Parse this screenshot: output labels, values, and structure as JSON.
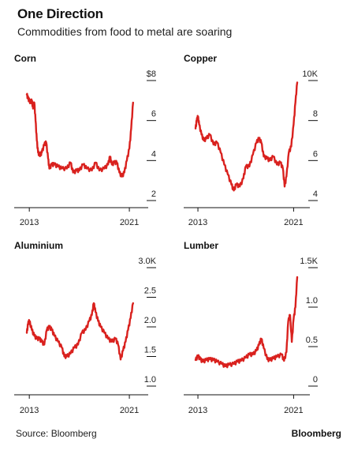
{
  "title": "One Direction",
  "subtitle": "Commodities from food to metal are soaring",
  "source": "Source: Bloomberg",
  "brand": "Bloomberg",
  "line_color": "#d9211e",
  "chart_data": [
    {
      "type": "line",
      "title": "Corn",
      "x_ticks": [
        "2013",
        "2021"
      ],
      "y_ticks": [
        "$8",
        "6",
        "4",
        "2"
      ],
      "ylim": [
        2,
        8
      ],
      "xlim": [
        2012.8,
        2021.5
      ],
      "series": [
        {
          "x": [
            2012.8,
            2012.9,
            2013.0,
            2013.1,
            2013.2,
            2013.3,
            2013.4,
            2013.5,
            2013.6,
            2013.7,
            2013.8,
            2013.9,
            2014.0,
            2014.2,
            2014.35,
            2014.5,
            2014.6,
            2014.8,
            2015.0,
            2015.3,
            2015.6,
            2016.0,
            2016.3,
            2016.5,
            2016.8,
            2017.0,
            2017.3,
            2017.6,
            2018.0,
            2018.3,
            2018.6,
            2019.0,
            2019.3,
            2019.45,
            2019.6,
            2019.8,
            2020.0,
            2020.2,
            2020.4,
            2020.6,
            2020.8,
            2021.0,
            2021.15,
            2021.3
          ],
          "y": [
            7.3,
            7.1,
            7.0,
            6.9,
            7.0,
            6.6,
            6.9,
            6.0,
            5.0,
            4.4,
            4.3,
            4.3,
            4.4,
            4.8,
            4.9,
            4.1,
            3.6,
            3.8,
            3.8,
            3.7,
            3.6,
            3.6,
            3.9,
            3.4,
            3.5,
            3.5,
            3.8,
            3.6,
            3.5,
            3.9,
            3.5,
            3.6,
            3.8,
            4.2,
            3.8,
            3.9,
            3.9,
            3.4,
            3.2,
            3.4,
            4.0,
            4.6,
            5.6,
            6.9
          ]
        }
      ]
    },
    {
      "type": "line",
      "title": "Copper",
      "x_ticks": [
        "2013",
        "2021"
      ],
      "y_ticks": [
        "10K",
        "8",
        "6",
        "4"
      ],
      "ylim": [
        4000,
        10000
      ],
      "xlim": [
        2012.8,
        2021.5
      ],
      "series": [
        {
          "x": [
            2012.8,
            2012.9,
            2013.0,
            2013.1,
            2013.3,
            2013.5,
            2013.7,
            2014.0,
            2014.3,
            2014.6,
            2014.9,
            2015.2,
            2015.5,
            2015.8,
            2016.0,
            2016.2,
            2016.5,
            2016.8,
            2017.0,
            2017.3,
            2017.6,
            2017.9,
            2018.1,
            2018.3,
            2018.5,
            2018.8,
            2019.0,
            2019.3,
            2019.6,
            2019.9,
            2020.1,
            2020.25,
            2020.4,
            2020.6,
            2020.8,
            2021.0,
            2021.15,
            2021.3
          ],
          "y": [
            7600,
            8000,
            8200,
            7800,
            7300,
            7000,
            7100,
            7300,
            6800,
            6900,
            6400,
            5800,
            5300,
            4800,
            4500,
            4800,
            4700,
            5100,
            5700,
            5700,
            6300,
            6900,
            7100,
            6900,
            6200,
            6100,
            6000,
            6200,
            5800,
            5900,
            5600,
            4700,
            5200,
            6400,
            6700,
            7800,
            8900,
            9900
          ]
        }
      ]
    },
    {
      "type": "line",
      "title": "Aluminium",
      "x_ticks": [
        "2013",
        "2021"
      ],
      "y_ticks": [
        "3.0K",
        "2.5",
        "2.0",
        "1.5",
        "1.0"
      ],
      "ylim": [
        1000,
        3000
      ],
      "xlim": [
        2012.8,
        2021.5
      ],
      "series": [
        {
          "x": [
            2012.8,
            2012.9,
            2013.0,
            2013.2,
            2013.4,
            2013.6,
            2013.8,
            2014.0,
            2014.2,
            2014.4,
            2014.6,
            2014.8,
            2015.0,
            2015.3,
            2015.6,
            2015.8,
            2016.0,
            2016.3,
            2016.6,
            2016.9,
            2017.2,
            2017.5,
            2017.8,
            2018.0,
            2018.15,
            2018.3,
            2018.5,
            2018.7,
            2019.0,
            2019.3,
            2019.6,
            2019.9,
            2020.1,
            2020.3,
            2020.5,
            2020.7,
            2020.9,
            2021.1,
            2021.3
          ],
          "y": [
            1900,
            2050,
            2100,
            1950,
            1850,
            1800,
            1800,
            1750,
            1700,
            1950,
            2000,
            1950,
            1850,
            1750,
            1650,
            1500,
            1500,
            1550,
            1650,
            1700,
            1900,
            1950,
            2100,
            2200,
            2400,
            2250,
            2100,
            2000,
            1900,
            1800,
            1750,
            1800,
            1700,
            1450,
            1600,
            1750,
            1950,
            2150,
            2400
          ]
        }
      ]
    },
    {
      "type": "line",
      "title": "Lumber",
      "x_ticks": [
        "2013",
        "2021"
      ],
      "y_ticks": [
        "1.5K",
        "1.0",
        "0.5",
        "0"
      ],
      "ylim": [
        0,
        1500
      ],
      "xlim": [
        2012.8,
        2021.5
      ],
      "series": [
        {
          "x": [
            2012.8,
            2013.0,
            2013.2,
            2013.4,
            2013.7,
            2014.0,
            2014.3,
            2014.6,
            2015.0,
            2015.3,
            2015.6,
            2016.0,
            2016.3,
            2016.6,
            2017.0,
            2017.3,
            2017.6,
            2017.9,
            2018.1,
            2018.3,
            2018.5,
            2018.8,
            2019.0,
            2019.3,
            2019.6,
            2020.0,
            2020.2,
            2020.4,
            2020.55,
            2020.7,
            2020.85,
            2021.0,
            2021.15,
            2021.3
          ],
          "y": [
            330,
            380,
            340,
            310,
            330,
            340,
            330,
            310,
            280,
            250,
            270,
            280,
            310,
            320,
            360,
            400,
            400,
            450,
            520,
            600,
            480,
            340,
            330,
            350,
            370,
            400,
            320,
            430,
            820,
            900,
            560,
            850,
            1000,
            1380
          ]
        }
      ]
    }
  ]
}
